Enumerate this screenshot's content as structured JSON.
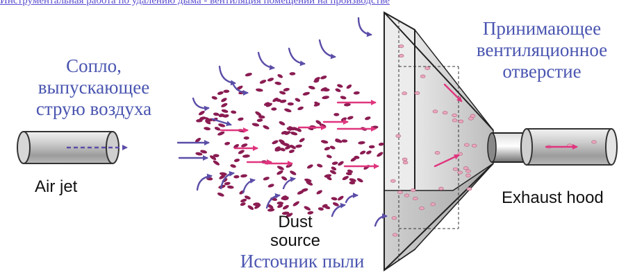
{
  "top_link": "Инструментальная работа по удалению дыма - вентиляция помещений на производстве",
  "labels": {
    "nozzle_ru": [
      "Сопло,",
      "выпускающее",
      "струю воздуха"
    ],
    "hood_ru": [
      "Принимающее",
      "вентиляционное",
      "отверстие"
    ],
    "source_ru": "Источник пыли",
    "air_jet": "Air jet",
    "dust_source": [
      "Dust",
      "source"
    ],
    "exhaust_hood": "Exhaust hood"
  },
  "colors": {
    "label_blue": "#4a55b0",
    "arrow_blue": "#5a4ea8",
    "arrow_pink": "#e0357e",
    "particle": "#8a1c52",
    "particle_light": "#e9a8bd",
    "hood_fill": "#d9d9d9",
    "pipe_fill": "#bfbfbf"
  }
}
